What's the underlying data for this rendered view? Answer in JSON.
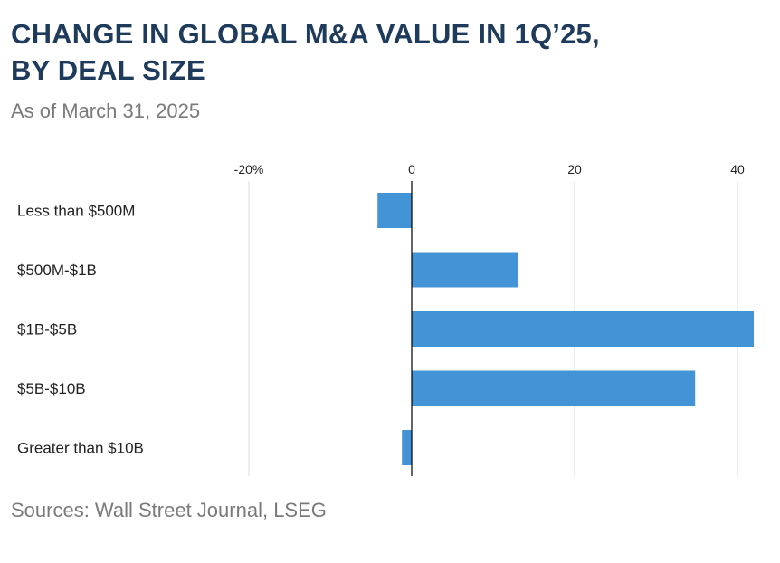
{
  "header": {
    "title_line1": "CHANGE IN GLOBAL M&A VALUE IN 1Q’25,",
    "title_line2": "BY DEAL SIZE",
    "subtitle": "As of March 31, 2025"
  },
  "footer": {
    "source": "Sources: Wall Street Journal, LSEG"
  },
  "colors": {
    "bar": "#4394d6",
    "title": "#1f3b5c",
    "grid": "#dddddd",
    "zero_line": "#000000",
    "text": "#222222",
    "muted": "#7a7a7a"
  },
  "chart_data": {
    "type": "bar",
    "orientation": "horizontal",
    "categories": [
      "Less than $500M",
      "$500M-$1B",
      "$1B-$5B",
      "$5B-$10B",
      "Greater than $10B"
    ],
    "values": [
      -4.2,
      13.0,
      42.0,
      34.8,
      -1.2
    ],
    "unit": "%",
    "xlim": [
      -20,
      42
    ],
    "x_ticks": [
      -20,
      0,
      20,
      40
    ],
    "x_tick_labels": [
      "-20%",
      "0",
      "20",
      "40"
    ],
    "tick_position": "top",
    "grid": true
  }
}
